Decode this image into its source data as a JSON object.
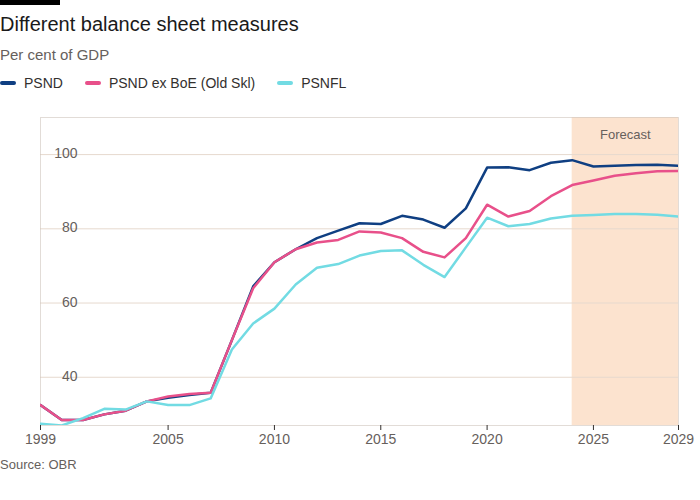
{
  "chart_data": {
    "type": "line",
    "title": "Different balance sheet measures",
    "subtitle": "Per cent of GDP",
    "caption": "Source: OBR",
    "x": [
      1999,
      2000,
      2001,
      2002,
      2003,
      2004,
      2005,
      2006,
      2007,
      2008,
      2009,
      2010,
      2011,
      2012,
      2013,
      2014,
      2015,
      2016,
      2017,
      2018,
      2019,
      2020,
      2021,
      2022,
      2023,
      2024,
      2025,
      2026,
      2027,
      2028,
      2029
    ],
    "series": [
      {
        "name": "PSND",
        "color": "#0f3f82",
        "values": [
          32.5,
          28.5,
          28.5,
          30,
          31,
          33.5,
          34.5,
          35.2,
          35.8,
          50,
          64.5,
          71,
          74.5,
          77.5,
          79.5,
          81.5,
          81.3,
          83.5,
          82.5,
          80.3,
          85.5,
          96.5,
          96.6,
          95.8,
          97.8,
          98.5,
          96.8,
          97,
          97.2,
          97.3,
          97
        ]
      },
      {
        "name": "PSND ex BoE (Old Skl)",
        "color": "#e8508a",
        "values": [
          32.5,
          28.5,
          28.5,
          30,
          31,
          33.5,
          34.8,
          35.5,
          35.8,
          50,
          64,
          71,
          74.5,
          76.3,
          77,
          79.3,
          79,
          77.5,
          73.8,
          72.3,
          77.5,
          86.5,
          83.3,
          84.8,
          88.8,
          91.8,
          93,
          94.3,
          95,
          95.5,
          95.6
        ]
      },
      {
        "name": "PSNFL",
        "color": "#72dbe3",
        "values": [
          27.5,
          27,
          29,
          31.5,
          31.3,
          33.5,
          32.5,
          32.5,
          34.3,
          47.5,
          54.5,
          58.5,
          65,
          69.5,
          70.5,
          72.8,
          74,
          74.2,
          70.3,
          67,
          75,
          83,
          80.7,
          81.3,
          82.8,
          83.5,
          83.7,
          84,
          84,
          83.8,
          83.3
        ]
      }
    ],
    "xlim": [
      1999,
      2029
    ],
    "xticks": [
      1999,
      2005,
      2010,
      2015,
      2020,
      2025,
      2029
    ],
    "ylim": [
      27,
      110
    ],
    "yticks": [
      40,
      60,
      80,
      100
    ],
    "grid": true,
    "legend": "top-left",
    "annotations": [
      {
        "text": "Forecast",
        "x": [
          2024,
          2029
        ]
      }
    ]
  }
}
